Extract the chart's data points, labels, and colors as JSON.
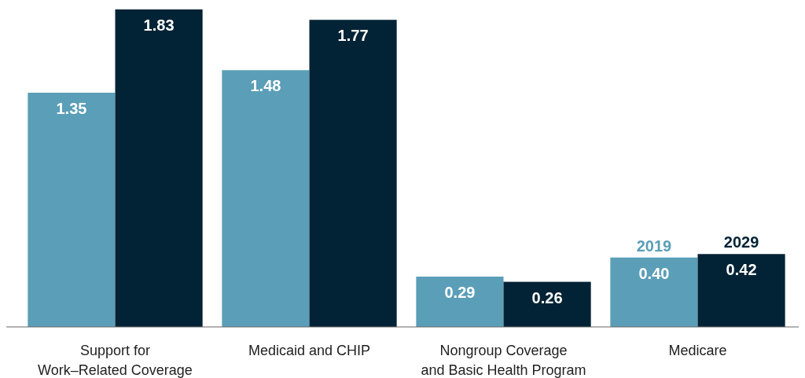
{
  "chart_data": {
    "type": "bar",
    "categories": [
      "Support for\nWork–Related Coverage",
      "Medicaid and CHIP",
      "Nongroup Coverage\nand Basic Health Program",
      "Medicare"
    ],
    "series": [
      {
        "name": "2019",
        "color": "#5b9eb7",
        "values": [
          1.35,
          1.48,
          0.29,
          0.4
        ],
        "value_labels": [
          "1.35",
          "1.48",
          "0.29",
          "0.40"
        ]
      },
      {
        "name": "2029",
        "color": "#022335",
        "values": [
          1.83,
          1.77,
          0.26,
          0.42
        ],
        "value_labels": [
          "1.83",
          "1.77",
          "0.26",
          "0.42"
        ]
      }
    ],
    "grid": false
  }
}
